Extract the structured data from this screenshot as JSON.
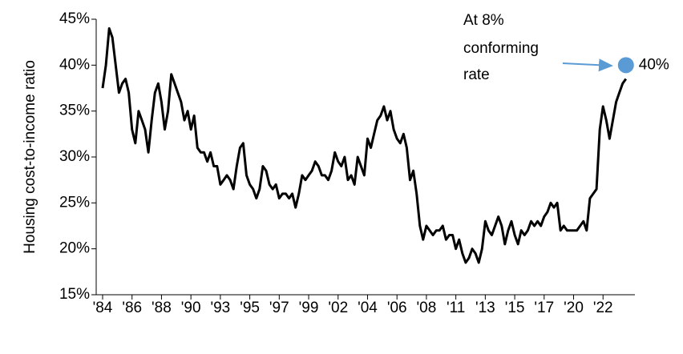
{
  "chart_data": {
    "type": "line",
    "ylabel": "Housing cost-to-income ratio",
    "categories": [
      "'84",
      null,
      null,
      null,
      null,
      null,
      null,
      null,
      null,
      "'86",
      null,
      null,
      null,
      null,
      null,
      null,
      null,
      null,
      "'88",
      null,
      null,
      null,
      null,
      null,
      null,
      null,
      null,
      "'90",
      null,
      null,
      null,
      null,
      null,
      null,
      null,
      null,
      "'93",
      null,
      null,
      null,
      null,
      null,
      null,
      null,
      null,
      "'95",
      null,
      null,
      null,
      null,
      null,
      null,
      null,
      null,
      "'97",
      null,
      null,
      null,
      null,
      null,
      null,
      null,
      null,
      "'99",
      null,
      null,
      null,
      null,
      null,
      null,
      null,
      null,
      "'02",
      null,
      null,
      null,
      null,
      null,
      null,
      null,
      null,
      "'04",
      null,
      null,
      null,
      null,
      null,
      null,
      null,
      null,
      "'06",
      null,
      null,
      null,
      null,
      null,
      null,
      null,
      null,
      "'08",
      null,
      null,
      null,
      null,
      null,
      null,
      null,
      null,
      "'11",
      null,
      null,
      null,
      null,
      null,
      null,
      null,
      null,
      "'13",
      null,
      null,
      null,
      null,
      null,
      null,
      null,
      null,
      "'15",
      null,
      null,
      null,
      null,
      null,
      null,
      null,
      null,
      "'17",
      null,
      null,
      null,
      null,
      null,
      null,
      null,
      null,
      "'20",
      null,
      null,
      null,
      null,
      null,
      null,
      null,
      null,
      "'22",
      null,
      null,
      null,
      null,
      null,
      null,
      null
    ],
    "values": [
      37.5,
      40,
      44,
      43,
      40,
      37,
      38,
      38.5,
      37,
      33,
      31.5,
      35,
      34,
      33,
      30.5,
      34,
      37,
      38,
      36,
      33,
      35,
      39,
      38,
      37,
      36,
      34,
      35,
      33,
      34.5,
      31,
      30.5,
      30.5,
      29.5,
      30.5,
      29,
      29,
      27,
      27.5,
      28,
      27.5,
      26.5,
      29,
      31,
      31.5,
      28,
      27,
      26.5,
      25.5,
      26.5,
      29,
      28.5,
      27,
      26.5,
      27,
      25.5,
      26,
      26,
      25.5,
      26,
      24.5,
      26,
      28,
      27.5,
      28,
      28.5,
      29.5,
      29,
      28,
      28,
      27.5,
      28.5,
      30.5,
      29.5,
      29,
      30,
      27.5,
      28,
      27,
      30,
      29,
      28,
      32,
      31,
      32.5,
      34,
      34.5,
      35.5,
      34,
      35,
      33,
      32,
      31.5,
      32.5,
      31,
      27.5,
      28.5,
      26,
      22.5,
      21,
      22.5,
      22,
      21.5,
      22,
      22,
      22.5,
      21,
      21.5,
      21.5,
      20,
      21,
      19.5,
      18.5,
      19,
      20,
      19.5,
      18.5,
      20,
      23,
      22,
      21.5,
      22.5,
      23.5,
      22.5,
      20.5,
      22,
      23,
      21.5,
      20.5,
      22,
      21.5,
      22,
      23,
      22.5,
      23,
      22.5,
      23.5,
      24,
      25,
      24.5,
      25,
      22,
      22.5,
      22,
      22,
      22,
      22,
      22.5,
      23,
      22,
      25.5,
      26,
      26.5,
      33,
      35.5,
      34,
      32,
      34,
      36,
      37,
      38,
      38.5
    ],
    "color": "#000000",
    "ylim": [
      15,
      45
    ],
    "yticks": [
      {
        "value": 15,
        "label": "15%"
      },
      {
        "value": 20,
        "label": "20%"
      },
      {
        "value": 25,
        "label": "25%"
      },
      {
        "value": 30,
        "label": "30%"
      },
      {
        "value": 35,
        "label": "35%"
      },
      {
        "value": 40,
        "label": "40%"
      },
      {
        "value": 45,
        "label": "45%"
      }
    ],
    "highlight": {
      "value": 40,
      "label": "40%",
      "color": "#5b9bd5"
    },
    "annotation": [
      "At 8%",
      "conforming",
      "rate"
    ]
  }
}
